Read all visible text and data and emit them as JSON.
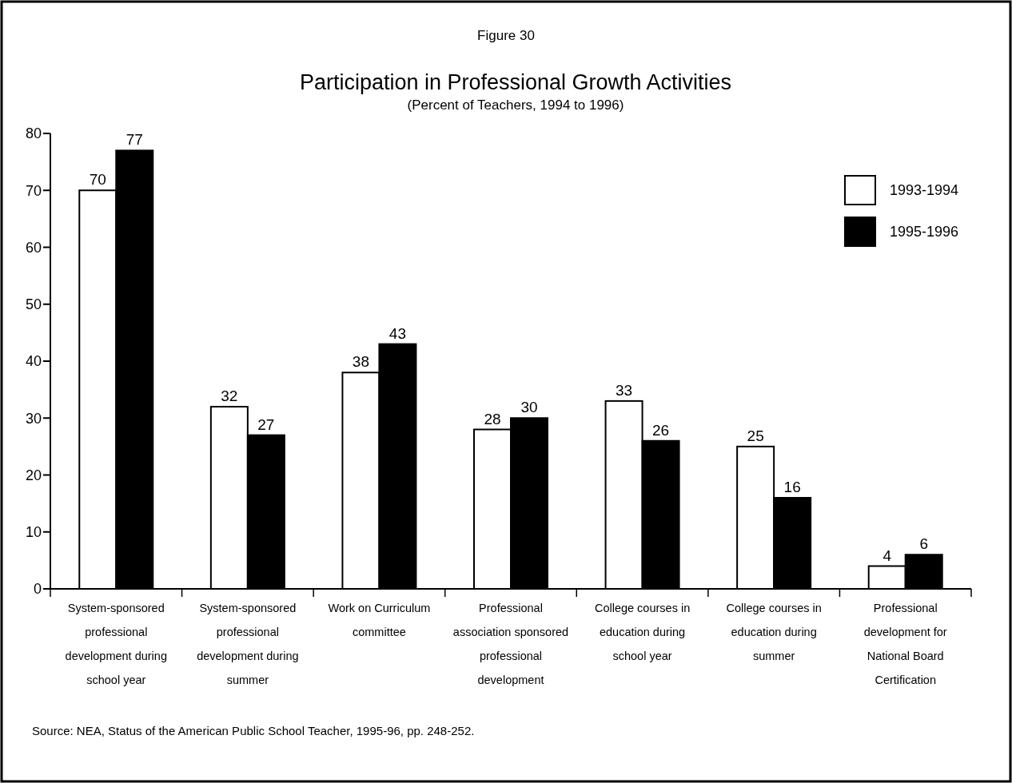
{
  "chart_data": {
    "type": "bar",
    "title": "Participation in Professional Growth Activities",
    "subtitle": "(Percent of Teachers, 1994 to 1996)",
    "annotations": [
      "Figure 30",
      "Source:  NEA, Status of the American Public School Teacher, 1995-96, pp. 248-252."
    ],
    "categories": [
      "System-sponsored professional development during school year",
      "System-sponsored professional development during summer",
      "Work on Curriculum committee",
      "Professional association sponsored professional development",
      "College courses in education during school year",
      "College courses in education during summer",
      "Professional development for National Board Certification"
    ],
    "series": [
      {
        "name": "1993-1994",
        "color": "#ffffff",
        "values": [
          70,
          32,
          38,
          28,
          33,
          25,
          4
        ]
      },
      {
        "name": "1995-1996",
        "color": "#000000",
        "values": [
          77,
          27,
          43,
          30,
          26,
          16,
          6
        ]
      }
    ],
    "ylim": [
      0,
      80
    ],
    "yticks": [
      0,
      10,
      20,
      30,
      40,
      50,
      60,
      70,
      80
    ],
    "grid": false,
    "legend": "top right",
    "data_labels": true
  }
}
